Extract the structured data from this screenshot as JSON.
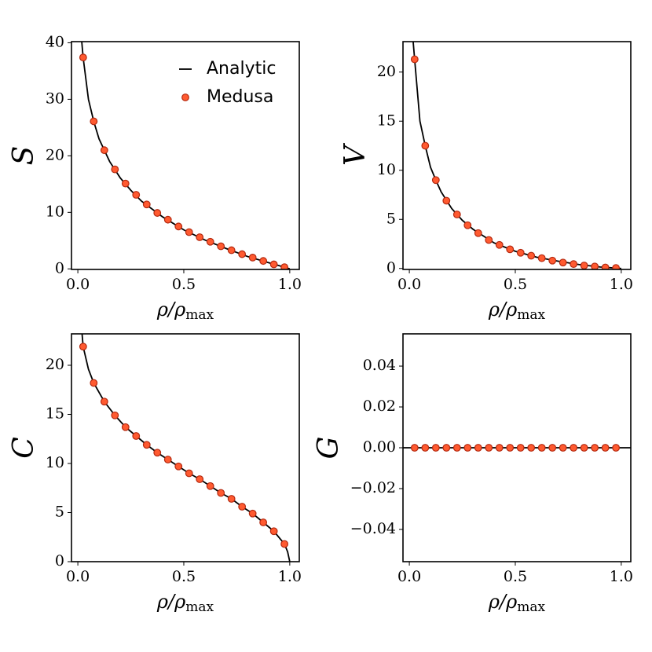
{
  "chart_data": [
    {
      "type": "line",
      "xlabel": [
        "ρ/ρ",
        "max"
      ],
      "ylabel": "S",
      "legend": "upper right",
      "xlim": [
        -0.03,
        1.045
      ],
      "ylim": [
        -0.1,
        40.2
      ],
      "xticks": [
        {
          "value": 0,
          "label": "0.0"
        },
        0.5,
        {
          "value": 1,
          "label": "1.0"
        }
      ],
      "yticks": [
        0,
        10,
        20,
        30,
        40
      ],
      "series": [
        {
          "name": "Analytic",
          "style": "line",
          "color": "#000000",
          "x": [
            0.0185,
            0.025,
            0.05,
            0.075,
            0.1,
            0.125,
            0.15,
            0.2,
            0.25,
            0.3,
            0.4,
            0.5,
            0.6,
            0.7,
            0.8,
            0.9,
            0.975,
            1.0
          ],
          "values": [
            40.2,
            37.4,
            30.0,
            26.1,
            23.0,
            21.0,
            19.0,
            16.1,
            13.9,
            12.0,
            9.2,
            6.9,
            5.1,
            3.6,
            2.2,
            1.1,
            0.3,
            0
          ]
        },
        {
          "name": "Medusa",
          "style": "marker",
          "color": "#ff5a30",
          "edgecolor": "#b3280f",
          "x": [
            0.025,
            0.075,
            0.125,
            0.175,
            0.225,
            0.275,
            0.325,
            0.375,
            0.425,
            0.475,
            0.525,
            0.575,
            0.625,
            0.675,
            0.725,
            0.775,
            0.825,
            0.875,
            0.925,
            0.975
          ],
          "values": [
            37.4,
            26.1,
            21.0,
            17.6,
            15.1,
            13.1,
            11.4,
            9.9,
            8.7,
            7.5,
            6.5,
            5.6,
            4.8,
            4.0,
            3.3,
            2.6,
            2.0,
            1.4,
            0.8,
            0.3
          ]
        }
      ]
    },
    {
      "type": "line",
      "xlabel": [
        "ρ/ρ",
        "max"
      ],
      "ylabel": "V",
      "xlim": [
        -0.03,
        1.045
      ],
      "ylim": [
        -0.1,
        23.1
      ],
      "xticks": [
        {
          "value": 0,
          "label": "0.0"
        },
        0.5,
        {
          "value": 1,
          "label": "1.0"
        }
      ],
      "yticks": [
        0,
        5,
        10,
        15,
        20
      ],
      "series": [
        {
          "style": "line",
          "color": "#000000",
          "x": [
            0.018,
            0.025,
            0.05,
            0.075,
            0.1,
            0.125,
            0.15,
            0.2,
            0.25,
            0.3,
            0.4,
            0.5,
            0.6,
            0.7,
            0.8,
            0.9,
            1.0
          ],
          "values": [
            23.1,
            21.3,
            15.0,
            12.5,
            10.3,
            9.0,
            7.8,
            6.1,
            4.9,
            4.0,
            2.6,
            1.75,
            1.15,
            0.75,
            0.4,
            0.15,
            0
          ]
        },
        {
          "style": "marker",
          "color": "#ff5a30",
          "edgecolor": "#b3280f",
          "x": [
            0.025,
            0.075,
            0.125,
            0.175,
            0.225,
            0.275,
            0.325,
            0.375,
            0.425,
            0.475,
            0.525,
            0.575,
            0.625,
            0.675,
            0.725,
            0.775,
            0.825,
            0.875,
            0.925,
            0.975
          ],
          "values": [
            21.3,
            12.5,
            9.0,
            6.9,
            5.5,
            4.4,
            3.6,
            2.9,
            2.4,
            1.95,
            1.6,
            1.3,
            1.05,
            0.8,
            0.6,
            0.45,
            0.3,
            0.2,
            0.1,
            0.05
          ]
        }
      ]
    },
    {
      "type": "line",
      "xlabel": [
        "ρ/ρ",
        "max"
      ],
      "ylabel": "C",
      "xlim": [
        -0.03,
        1.045
      ],
      "ylim": [
        0,
        23.2
      ],
      "xticks": [
        {
          "value": 0,
          "label": "0.0"
        },
        0.5,
        {
          "value": 1,
          "label": "1.0"
        }
      ],
      "yticks": [
        0,
        5,
        10,
        15,
        20
      ],
      "series": [
        {
          "style": "line",
          "color": "#000000",
          "x": [
            0.02,
            0.025,
            0.05,
            0.075,
            0.125,
            0.175,
            0.225,
            0.275,
            0.325,
            0.375,
            0.425,
            0.475,
            0.525,
            0.575,
            0.625,
            0.675,
            0.725,
            0.775,
            0.825,
            0.875,
            0.925,
            0.975,
            0.99,
            1.0
          ],
          "values": [
            23.2,
            21.9,
            19.6,
            18.2,
            16.3,
            14.9,
            13.7,
            12.8,
            11.9,
            11.1,
            10.4,
            9.7,
            9.0,
            8.4,
            7.7,
            7.0,
            6.4,
            5.6,
            4.9,
            4.0,
            3.1,
            1.8,
            1.0,
            0
          ]
        },
        {
          "style": "marker",
          "color": "#ff5a30",
          "edgecolor": "#b3280f",
          "x": [
            0.025,
            0.075,
            0.125,
            0.175,
            0.225,
            0.275,
            0.325,
            0.375,
            0.425,
            0.475,
            0.525,
            0.575,
            0.625,
            0.675,
            0.725,
            0.775,
            0.825,
            0.875,
            0.925,
            0.975
          ],
          "values": [
            21.9,
            18.2,
            16.3,
            14.9,
            13.7,
            12.8,
            11.9,
            11.1,
            10.4,
            9.7,
            9.0,
            8.4,
            7.7,
            7.0,
            6.4,
            5.6,
            4.9,
            4.0,
            3.1,
            1.8
          ]
        }
      ]
    },
    {
      "type": "line",
      "xlabel": [
        "ρ/ρ",
        "max"
      ],
      "ylabel": "G",
      "xlim": [
        -0.03,
        1.045
      ],
      "ylim": [
        -0.0558,
        0.0558
      ],
      "xticks": [
        {
          "value": 0,
          "label": "0.0"
        },
        0.5,
        {
          "value": 1,
          "label": "1.0"
        }
      ],
      "yticks": [
        {
          "value": -0.04,
          "label": "−0.04"
        },
        {
          "value": -0.02,
          "label": "−0.02"
        },
        {
          "value": 0,
          "label": "0.00"
        },
        0.02,
        0.04
      ],
      "series": [
        {
          "style": "line",
          "color": "#000000",
          "x": [
            -0.03,
            1.045
          ],
          "values": [
            0,
            0
          ]
        },
        {
          "style": "marker",
          "color": "#ff5a30",
          "edgecolor": "#b3280f",
          "x": [
            0.025,
            0.075,
            0.125,
            0.175,
            0.225,
            0.275,
            0.325,
            0.375,
            0.425,
            0.475,
            0.525,
            0.575,
            0.625,
            0.675,
            0.725,
            0.775,
            0.825,
            0.875,
            0.925,
            0.975
          ],
          "values": [
            0,
            0,
            0,
            0,
            0,
            0,
            0,
            0,
            0,
            0,
            0,
            0,
            0,
            0,
            0,
            0,
            0,
            0,
            0,
            0
          ]
        }
      ]
    }
  ]
}
